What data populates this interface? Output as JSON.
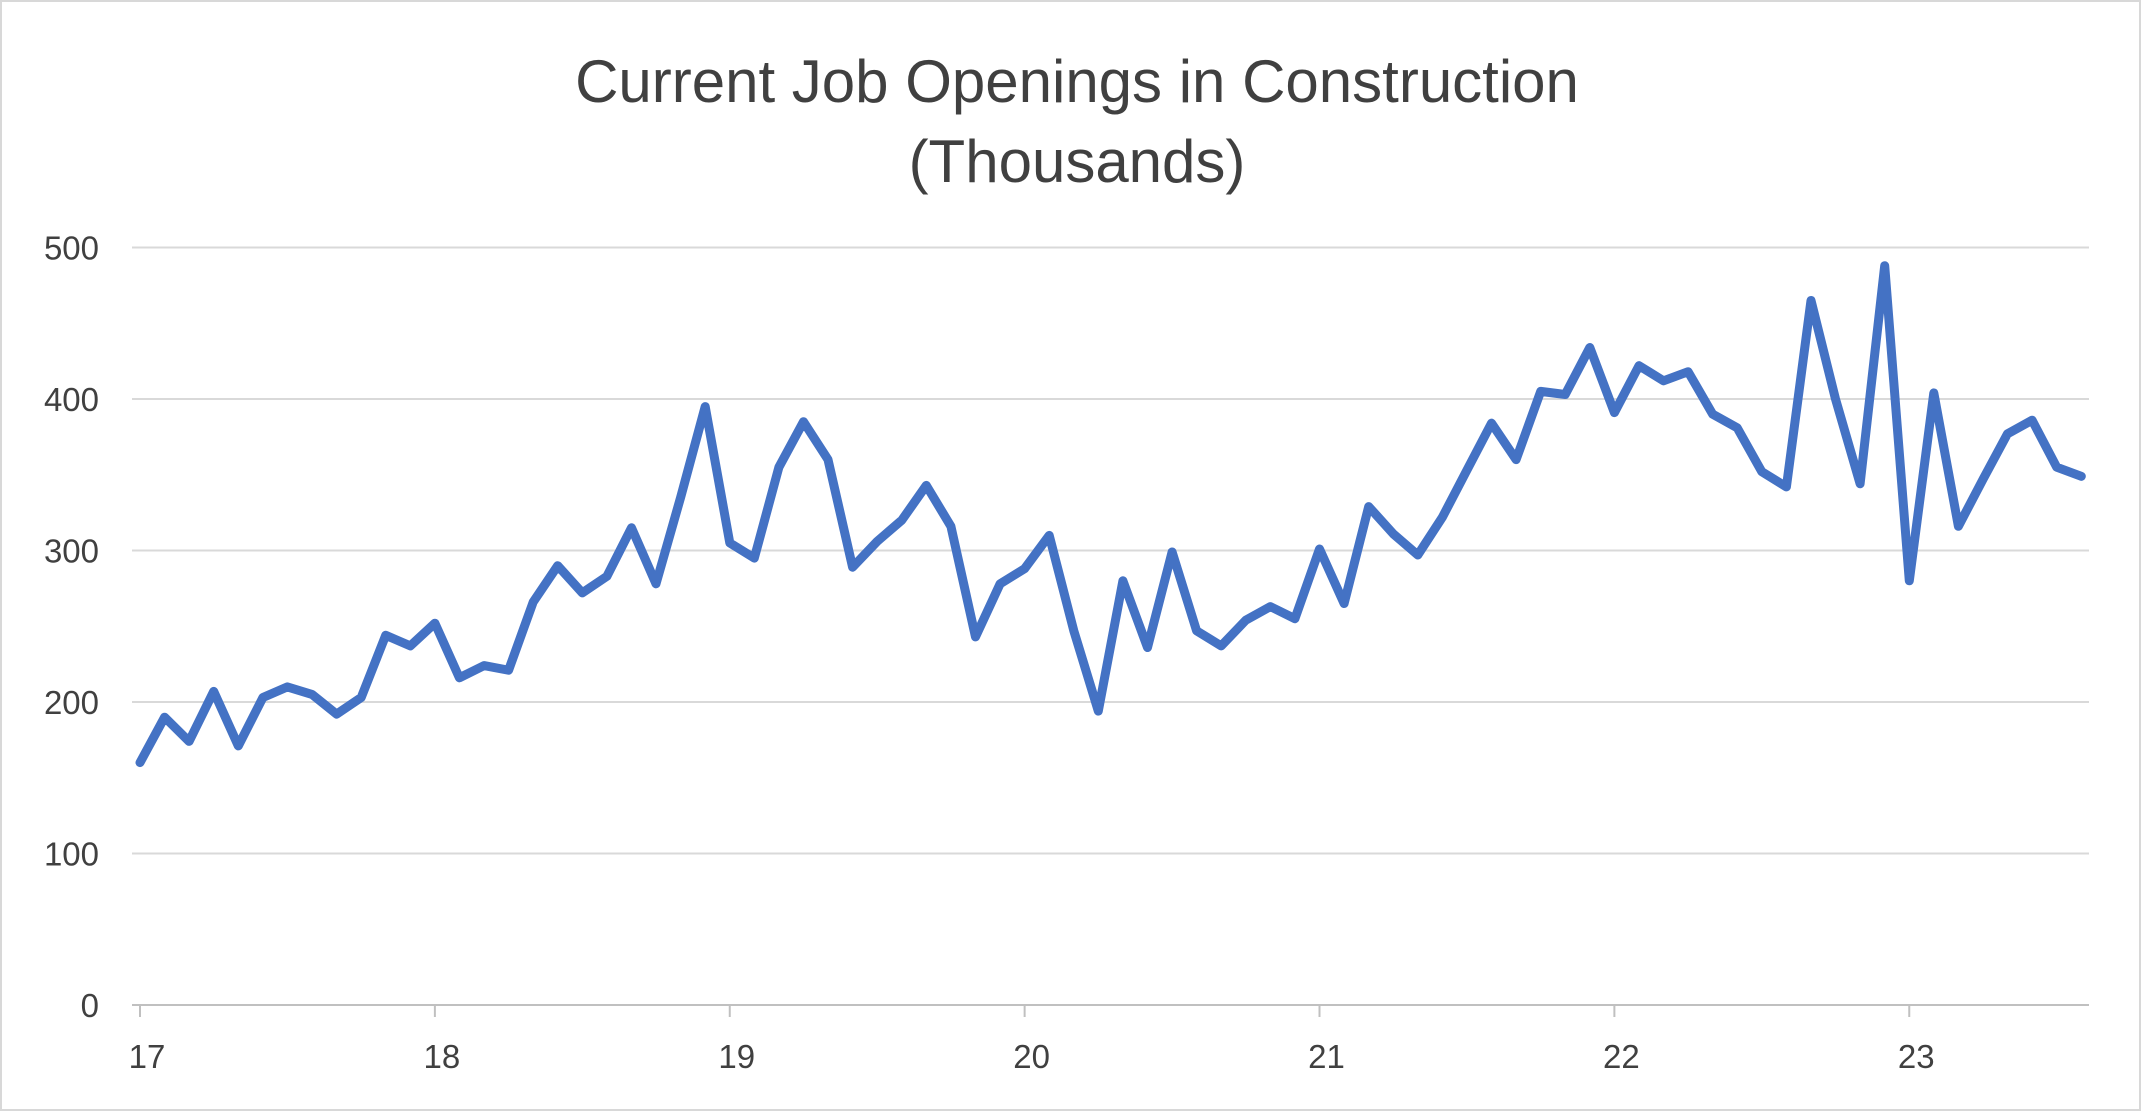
{
  "page": {
    "background": "#FFFFFF",
    "border_color": "#D8D8D8"
  },
  "chart_data": {
    "type": "line",
    "title": "Current Job Openings in Construction",
    "subtitle": "(Thousands)",
    "x_start": "2017-01",
    "frequency": "monthly",
    "values": [
      160,
      190,
      174,
      207,
      171,
      203,
      210,
      205,
      192,
      203,
      244,
      237,
      252,
      216,
      224,
      221,
      266,
      290,
      272,
      283,
      315,
      278,
      335,
      395,
      305,
      295,
      355,
      385,
      360,
      289,
      306,
      320,
      343,
      316,
      243,
      278,
      288,
      310,
      247,
      194,
      280,
      236,
      299,
      247,
      237,
      254,
      263,
      255,
      301,
      265,
      329,
      311,
      297,
      322,
      353,
      384,
      360,
      405,
      403,
      434,
      391,
      422,
      412,
      418,
      390,
      381,
      352,
      342,
      465,
      400,
      344,
      488,
      280,
      404,
      316,
      347,
      377,
      386,
      355,
      349
    ],
    "x_tick_labels": [
      "17",
      "18",
      "19",
      "20",
      "21",
      "22",
      "23"
    ],
    "y_ticks": [
      0,
      100,
      200,
      300,
      400,
      500
    ],
    "y_tick_labels": [
      "0",
      "100",
      "200",
      "300",
      "400",
      "500"
    ],
    "ylim": [
      0,
      500
    ],
    "grid": true,
    "legend": "none",
    "colors": {
      "line": "#4472C4",
      "grid": "#D9D9D9",
      "axis": "#C0C0C0",
      "text": "#404040"
    }
  }
}
